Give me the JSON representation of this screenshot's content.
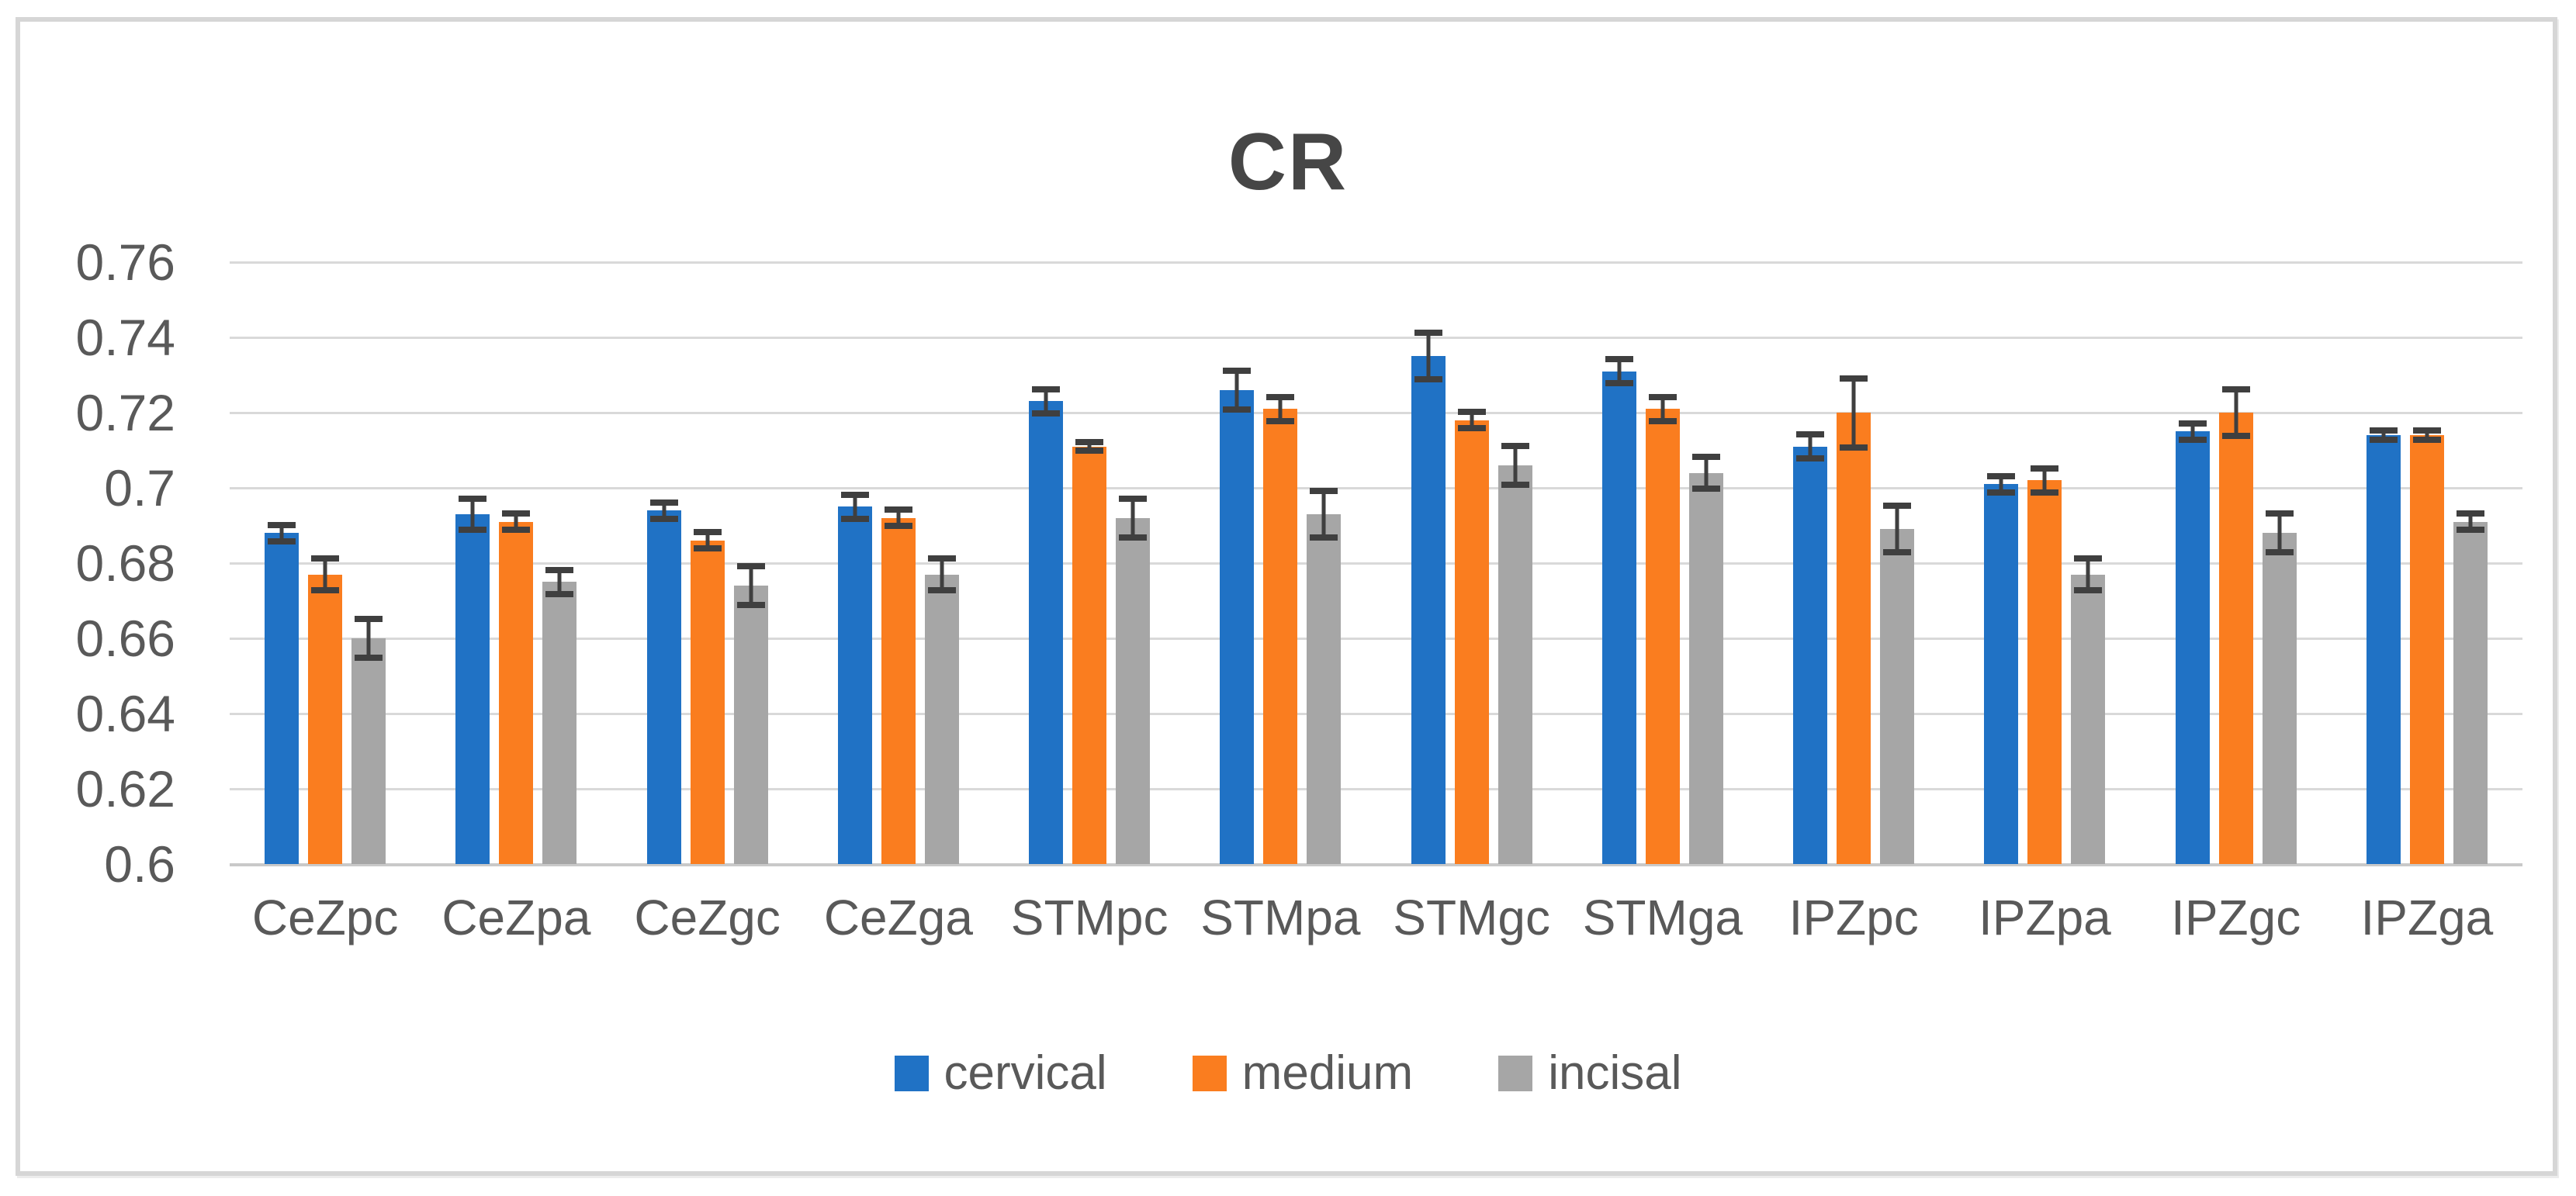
{
  "title": "CR",
  "colors": {
    "cervical": "#2072C5",
    "medium": "#FA7D1F",
    "incisal": "#A6A6A6",
    "error_bar": "#3F3F3F",
    "gridline": "#D9D9D9",
    "axis_line": "#C9C9C9",
    "text": "#595959",
    "title_text": "#464646",
    "frame_border": "#D6D6D6"
  },
  "chart_data": {
    "type": "bar",
    "title": "CR",
    "xlabel": "",
    "ylabel": "",
    "ylim": [
      0.6,
      0.76
    ],
    "ytick_step": 0.02,
    "ytick_labels": [
      "0.76",
      "0.74",
      "0.72",
      "0.7",
      "0.68",
      "0.66",
      "0.64",
      "0.62",
      "0.6"
    ],
    "grid": true,
    "legend_position": "bottom",
    "error_bars": true,
    "categories": [
      "CeZpc",
      "CeZpa",
      "CeZgc",
      "CeZga",
      "STMpc",
      "STMpa",
      "STMgc",
      "STMga",
      "IPZpc",
      "IPZpa",
      "IPZgc",
      "IPZga"
    ],
    "series": [
      {
        "name": "cervical",
        "color": "#2072C5",
        "values": [
          0.688,
          0.693,
          0.694,
          0.695,
          0.723,
          0.726,
          0.735,
          0.731,
          0.711,
          0.701,
          0.715,
          0.714
        ],
        "errors": [
          0.003,
          0.005,
          0.003,
          0.004,
          0.004,
          0.006,
          0.007,
          0.004,
          0.004,
          0.003,
          0.003,
          0.002
        ]
      },
      {
        "name": "medium",
        "color": "#FA7D1F",
        "values": [
          0.677,
          0.691,
          0.686,
          0.692,
          0.711,
          0.721,
          0.718,
          0.721,
          0.72,
          0.702,
          0.72,
          0.714
        ],
        "errors": [
          0.005,
          0.003,
          0.003,
          0.003,
          0.002,
          0.004,
          0.003,
          0.004,
          0.01,
          0.004,
          0.007,
          0.002
        ]
      },
      {
        "name": "incisal",
        "color": "#A6A6A6",
        "values": [
          0.66,
          0.675,
          0.674,
          0.677,
          0.692,
          0.693,
          0.706,
          0.704,
          0.689,
          0.677,
          0.688,
          0.691
        ],
        "errors": [
          0.006,
          0.004,
          0.006,
          0.005,
          0.006,
          0.007,
          0.006,
          0.005,
          0.007,
          0.005,
          0.006,
          0.003
        ]
      }
    ]
  }
}
